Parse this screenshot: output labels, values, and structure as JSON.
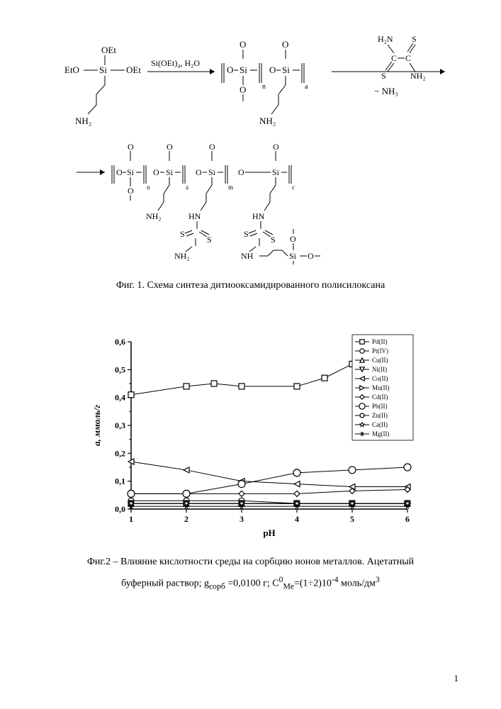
{
  "fig1": {
    "caption": "Фиг. 1. Схема синтеза дитиооксамидированного полисилоксана",
    "reagent1_top": "OEt",
    "reagent1_left": "EtO",
    "reagent1_right": "OEt",
    "reagent1_si": "Si",
    "reagent1_bottom": "NH₂",
    "arrow1_top": "Si(OEt)₄, H₂O",
    "intermediate_si": "Si",
    "intermediate_o": "O",
    "intermediate_nh2": "NH₂",
    "subscript_n": "n",
    "subscript_a": "a",
    "reagent2_top": "H₂N",
    "reagent2_s": "S",
    "reagent2_c": "C",
    "reagent2_bottom": "NH₂",
    "arrow2_bottom": "− NH₃",
    "product_si": "Si",
    "product_o": "O",
    "product_nh2": "NH₂",
    "product_hn": "HN",
    "product_s": "S",
    "subscript_m": "m",
    "subscript_c": "c"
  },
  "chart": {
    "type": "line",
    "xlabel": "pH",
    "ylabel": "a, ммоль/г",
    "xlim": [
      1,
      6
    ],
    "ylim": [
      0,
      0.6
    ],
    "xtick_values": [
      1,
      2,
      3,
      4,
      5,
      6
    ],
    "xtick_labels": [
      "1",
      "2",
      "3",
      "4",
      "5",
      "6"
    ],
    "ytick_values": [
      0,
      0.1,
      0.2,
      0.3,
      0.4,
      0.5,
      0.6
    ],
    "ytick_labels": [
      "0,0",
      "0,1",
      "0,2",
      "0,3",
      "0,4",
      "0,5",
      "0,6"
    ],
    "background_color": "#ffffff",
    "axis_color": "#000000",
    "tick_fontsize": 12,
    "label_fontsize": 13,
    "label_fontweight": "bold",
    "legend": {
      "position": "top-right",
      "items": [
        "Pd(II)",
        "Pt(IV)",
        "Cu(II)",
        "Ni(II)",
        "Co(II)",
        "Mn(II)",
        "Cd(II)",
        "Pb(II)",
        "Zn(II)",
        "Ca(II)",
        "Mg(II)"
      ],
      "fontsize": 9,
      "border_color": "#000000",
      "background": "#ffffff"
    },
    "series": [
      {
        "name": "Pd(II)",
        "marker": "square-open",
        "color": "#000000",
        "data": [
          [
            1,
            0.41
          ],
          [
            2,
            0.44
          ],
          [
            2.5,
            0.45
          ],
          [
            3,
            0.44
          ],
          [
            4,
            0.44
          ],
          [
            4.5,
            0.47
          ],
          [
            5,
            0.52
          ],
          [
            6,
            0.55
          ]
        ]
      },
      {
        "name": "Pt(IV)",
        "marker": "circle-open",
        "color": "#000000",
        "data": [
          [
            1,
            0.03
          ],
          [
            2,
            0.03
          ],
          [
            3,
            0.03
          ],
          [
            4,
            0.02
          ],
          [
            5,
            0.02
          ],
          [
            6,
            0.02
          ]
        ]
      },
      {
        "name": "Cu(II)",
        "marker": "triangle-up-open",
        "color": "#000000",
        "data": [
          [
            1,
            0.02
          ],
          [
            2,
            0.02
          ],
          [
            3,
            0.02
          ],
          [
            4,
            0.02
          ],
          [
            5,
            0.02
          ],
          [
            6,
            0.02
          ]
        ]
      },
      {
        "name": "Ni(II)",
        "marker": "triangle-down-open",
        "color": "#000000",
        "data": [
          [
            1,
            0.02
          ],
          [
            2,
            0.02
          ],
          [
            3,
            0.02
          ],
          [
            4,
            0.02
          ],
          [
            5,
            0.02
          ],
          [
            6,
            0.02
          ]
        ]
      },
      {
        "name": "Co(II)",
        "marker": "triangle-left-open",
        "color": "#000000",
        "data": [
          [
            1,
            0.17
          ],
          [
            2,
            0.14
          ],
          [
            3,
            0.1
          ],
          [
            4,
            0.09
          ],
          [
            5,
            0.08
          ],
          [
            6,
            0.08
          ]
        ]
      },
      {
        "name": "Mn(II)",
        "marker": "triangle-right-open",
        "color": "#000000",
        "data": [
          [
            1,
            0.02
          ],
          [
            2,
            0.02
          ],
          [
            3,
            0.02
          ],
          [
            4,
            0.02
          ],
          [
            5,
            0.02
          ],
          [
            6,
            0.02
          ]
        ]
      },
      {
        "name": "Cd(II)",
        "marker": "diamond-open",
        "color": "#000000",
        "data": [
          [
            1,
            0.055
          ],
          [
            2,
            0.055
          ],
          [
            3,
            0.055
          ],
          [
            4,
            0.055
          ],
          [
            5,
            0.065
          ],
          [
            6,
            0.07
          ]
        ]
      },
      {
        "name": "Pb(II)",
        "marker": "circle-open-large",
        "color": "#000000",
        "data": [
          [
            1,
            0.055
          ],
          [
            2,
            0.055
          ],
          [
            3,
            0.09
          ],
          [
            4,
            0.13
          ],
          [
            5,
            0.14
          ],
          [
            6,
            0.15
          ]
        ]
      },
      {
        "name": "Zn(II)",
        "marker": "hexagon-open",
        "color": "#000000",
        "data": [
          [
            1,
            0.02
          ],
          [
            2,
            0.02
          ],
          [
            3,
            0.02
          ],
          [
            4,
            0.02
          ],
          [
            5,
            0.02
          ],
          [
            6,
            0.02
          ]
        ]
      },
      {
        "name": "Ca(II)",
        "marker": "star-open",
        "color": "#000000",
        "data": [
          [
            1,
            0.02
          ],
          [
            2,
            0.02
          ],
          [
            3,
            0.02
          ],
          [
            4,
            0.02
          ],
          [
            5,
            0.02
          ],
          [
            6,
            0.02
          ]
        ]
      },
      {
        "name": "Mg(II)",
        "marker": "asterisk",
        "color": "#000000",
        "data": [
          [
            1,
            0.01
          ],
          [
            2,
            0.01
          ],
          [
            3,
            0.01
          ],
          [
            4,
            0.01
          ],
          [
            5,
            0.01
          ],
          [
            6,
            0.01
          ]
        ]
      }
    ]
  },
  "fig2": {
    "caption_line1": "Фиг.2 – Влияние кислотности среды на сорбцию ионов металлов. Ацетатный",
    "caption_line2_a": "буферный раствор; g",
    "caption_line2_sub1": "сорб",
    "caption_line2_b": " =0,0100 г; C",
    "caption_line2_sup1": "0",
    "caption_line2_sub2": "Me",
    "caption_line2_c": "=(1÷2)10",
    "caption_line2_sup2": "-4",
    "caption_line2_d": " моль/дм",
    "caption_line2_sup3": "3"
  },
  "page_number": "1"
}
